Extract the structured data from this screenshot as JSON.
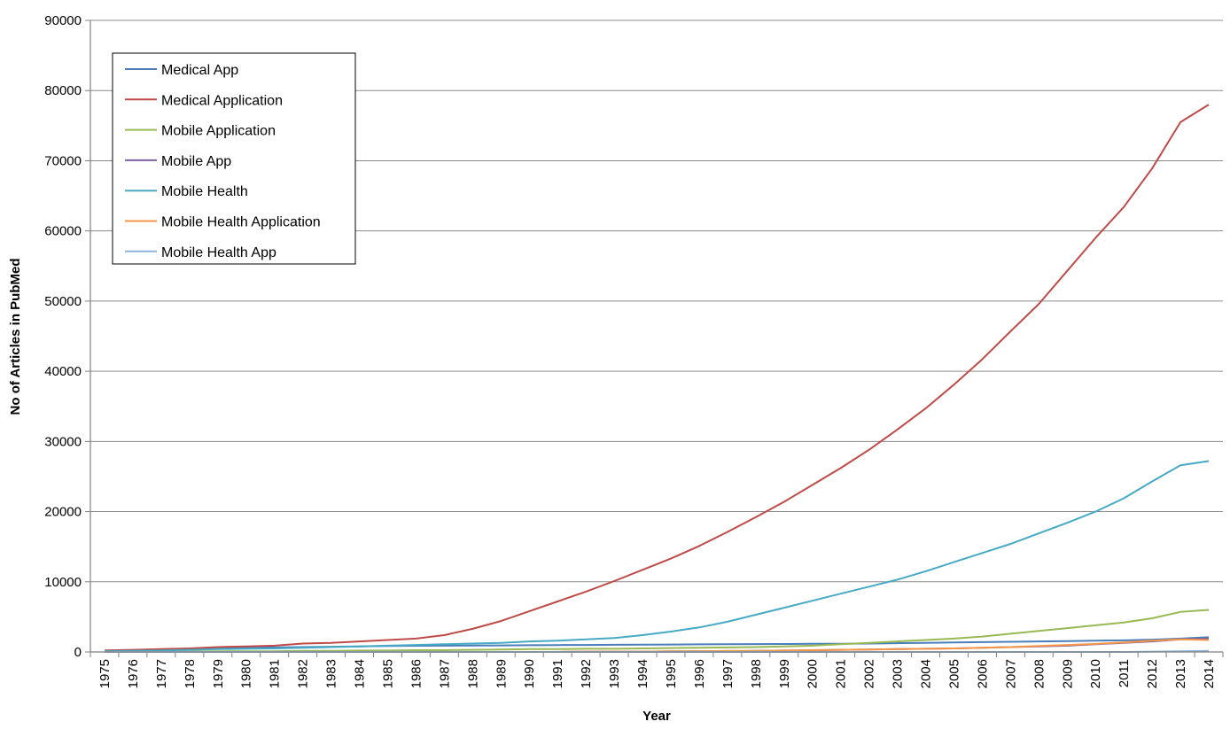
{
  "chart_data": {
    "type": "line",
    "title": "",
    "xlabel": "Year",
    "ylabel": "No of Articles in PubMed",
    "ylim": [
      0,
      90000
    ],
    "yticks": [
      0,
      10000,
      20000,
      30000,
      40000,
      50000,
      60000,
      70000,
      80000,
      90000
    ],
    "grid": true,
    "legend_position": "top-left",
    "x": [
      1975,
      1976,
      1977,
      1978,
      1979,
      1980,
      1981,
      1982,
      1983,
      1984,
      1985,
      1986,
      1987,
      1988,
      1989,
      1990,
      1991,
      1992,
      1993,
      1994,
      1995,
      1996,
      1997,
      1998,
      1999,
      2000,
      2001,
      2002,
      2003,
      2004,
      2005,
      2006,
      2007,
      2008,
      2009,
      2010,
      2011,
      2012,
      2013,
      2014
    ],
    "series": [
      {
        "name": "Medical App",
        "color": "#4a7ebb",
        "values": [
          200,
          250,
          300,
          400,
          500,
          600,
          650,
          700,
          750,
          800,
          850,
          880,
          900,
          920,
          940,
          960,
          980,
          1000,
          1020,
          1040,
          1060,
          1080,
          1100,
          1120,
          1140,
          1160,
          1180,
          1200,
          1250,
          1300,
          1350,
          1400,
          1450,
          1500,
          1550,
          1600,
          1650,
          1750,
          1900,
          2100
        ]
      },
      {
        "name": "Medical Application",
        "color": "#be4b48",
        "values": [
          200,
          300,
          400,
          500,
          700,
          800,
          900,
          1200,
          1300,
          1500,
          1700,
          1900,
          2400,
          3300,
          4400,
          5800,
          7200,
          8600,
          10100,
          11700,
          13300,
          15100,
          17100,
          19200,
          21400,
          23800,
          26200,
          28800,
          31700,
          34700,
          38100,
          41700,
          45700,
          49600,
          54300,
          59000,
          63400,
          68900,
          75500,
          78000
        ]
      },
      {
        "name": "Mobile Application",
        "color": "#98b954",
        "values": [
          0,
          0,
          50,
          50,
          100,
          100,
          100,
          150,
          150,
          200,
          200,
          250,
          250,
          300,
          350,
          400,
          400,
          450,
          450,
          500,
          550,
          600,
          650,
          700,
          800,
          900,
          1100,
          1300,
          1500,
          1700,
          1900,
          2200,
          2600,
          3000,
          3400,
          3800,
          4200,
          4800,
          5700,
          6000
        ]
      },
      {
        "name": "Mobile App",
        "color": "#7d60a0",
        "values": [
          0,
          0,
          0,
          0,
          0,
          0,
          0,
          0,
          0,
          0,
          0,
          0,
          0,
          0,
          0,
          0,
          0,
          50,
          50,
          50,
          100,
          100,
          100,
          150,
          200,
          250,
          300,
          350,
          400,
          450,
          500,
          600,
          700,
          800,
          900,
          1100,
          1300,
          1500,
          1800,
          1900
        ]
      },
      {
        "name": "Mobile Health",
        "color": "#46aac4",
        "values": [
          100,
          150,
          200,
          300,
          400,
          450,
          500,
          600,
          700,
          800,
          900,
          1000,
          1100,
          1200,
          1300,
          1500,
          1600,
          1800,
          2000,
          2400,
          2900,
          3500,
          4300,
          5300,
          6300,
          7300,
          8300,
          9300,
          10300,
          11500,
          12800,
          14100,
          15400,
          16900,
          18400,
          20000,
          21900,
          24300,
          26600,
          27200
        ]
      },
      {
        "name": "Mobile Health Application",
        "color": "#f79646",
        "values": [
          0,
          0,
          0,
          0,
          0,
          0,
          0,
          0,
          0,
          0,
          0,
          0,
          0,
          0,
          0,
          0,
          0,
          50,
          50,
          50,
          100,
          100,
          150,
          150,
          200,
          250,
          300,
          350,
          400,
          450,
          500,
          600,
          700,
          850,
          1000,
          1150,
          1350,
          1600,
          1800,
          1700
        ]
      },
      {
        "name": "Mobile Health App",
        "color": "#8fb4d9",
        "values": [
          0,
          0,
          0,
          0,
          0,
          0,
          0,
          0,
          0,
          0,
          0,
          0,
          0,
          0,
          0,
          0,
          0,
          0,
          0,
          0,
          0,
          0,
          0,
          0,
          0,
          0,
          0,
          0,
          0,
          0,
          0,
          0,
          0,
          0,
          0,
          0,
          0,
          50,
          100,
          150
        ]
      }
    ]
  }
}
